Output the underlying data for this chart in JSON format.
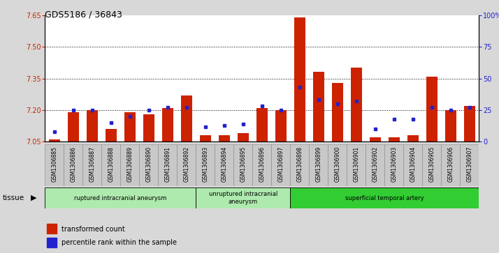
{
  "title": "GDS5186 / 36843",
  "samples": [
    "GSM1306885",
    "GSM1306886",
    "GSM1306887",
    "GSM1306888",
    "GSM1306889",
    "GSM1306890",
    "GSM1306891",
    "GSM1306892",
    "GSM1306893",
    "GSM1306894",
    "GSM1306895",
    "GSM1306896",
    "GSM1306897",
    "GSM1306898",
    "GSM1306899",
    "GSM1306900",
    "GSM1306901",
    "GSM1306902",
    "GSM1306903",
    "GSM1306904",
    "GSM1306905",
    "GSM1306906",
    "GSM1306907"
  ],
  "red_values": [
    7.06,
    7.19,
    7.2,
    7.11,
    7.19,
    7.18,
    7.21,
    7.27,
    7.08,
    7.08,
    7.09,
    7.21,
    7.2,
    7.64,
    7.38,
    7.33,
    7.4,
    7.07,
    7.07,
    7.08,
    7.36,
    7.2,
    7.22
  ],
  "blue_values": [
    8,
    25,
    25,
    15,
    20,
    25,
    27,
    27,
    12,
    13,
    14,
    28,
    25,
    43,
    33,
    30,
    32,
    10,
    18,
    18,
    27,
    25,
    27
  ],
  "ylim_left": [
    7.05,
    7.65
  ],
  "ylim_right": [
    0,
    100
  ],
  "yticks_left": [
    7.05,
    7.2,
    7.35,
    7.5,
    7.65
  ],
  "yticks_right": [
    0,
    25,
    50,
    75,
    100
  ],
  "ytick_labels_right": [
    "0",
    "25",
    "50",
    "75",
    "100%"
  ],
  "groups": [
    {
      "label": "ruptured intracranial aneurysm",
      "start": 0,
      "end": 8,
      "color": "#aeeaae"
    },
    {
      "label": "unruptured intracranial\naneurysm",
      "start": 8,
      "end": 13,
      "color": "#aeeaae"
    },
    {
      "label": "superficial temporal artery",
      "start": 13,
      "end": 23,
      "color": "#32CD32"
    }
  ],
  "tissue_label": "tissue",
  "bar_color": "#CC2200",
  "dot_color": "#2222CC",
  "background_color": "#D8D8D8",
  "plot_bg_color": "#FFFFFF",
  "label_bg_color": "#C8C8C8"
}
